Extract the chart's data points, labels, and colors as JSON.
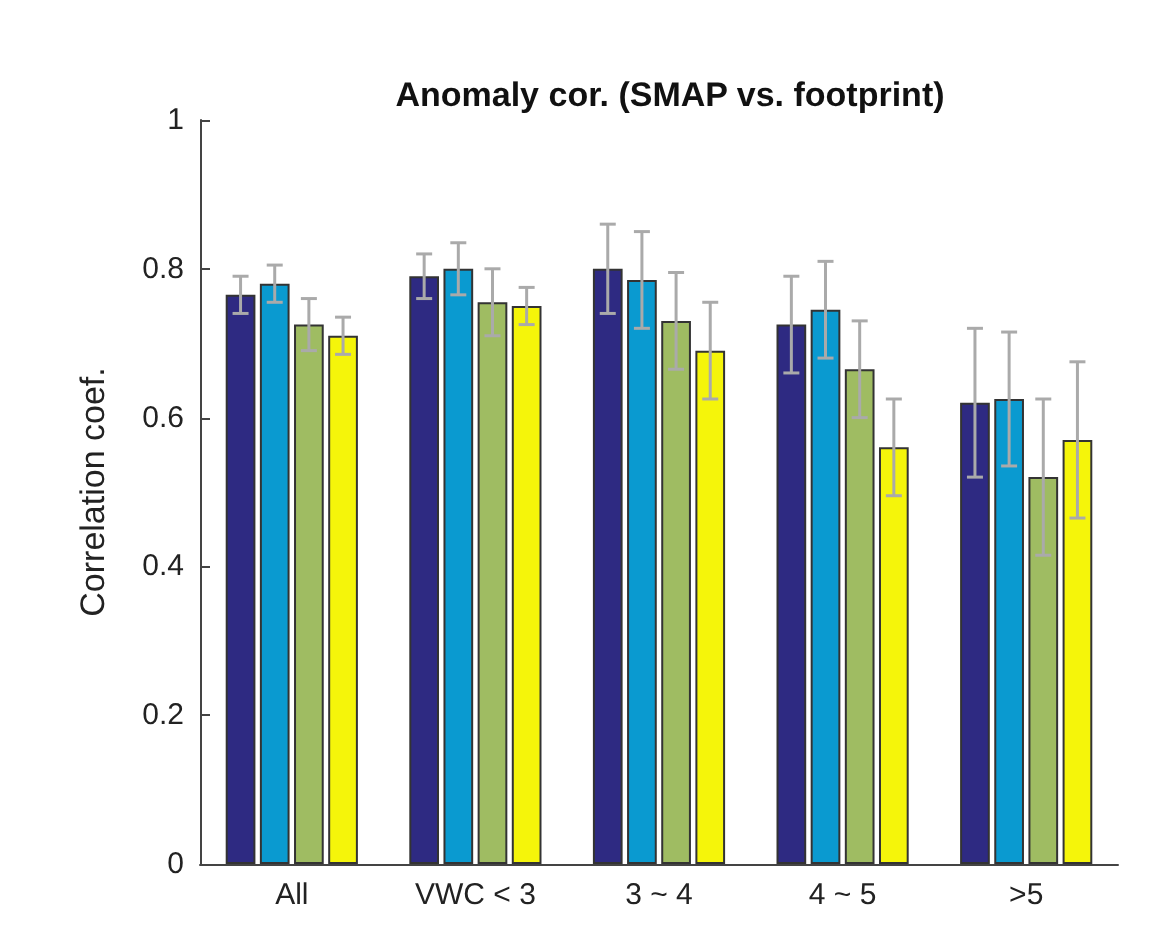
{
  "chart_data": {
    "type": "bar",
    "title": "Anomaly cor. (SMAP vs. footprint)",
    "ylabel": "Correlation coef.",
    "categories": [
      "All",
      "VWC < 3",
      "3 ~ 4",
      "4 ~ 5",
      ">5"
    ],
    "series": [
      {
        "color": "#2e2a82",
        "values": [
          0.765,
          0.79,
          0.8,
          0.725,
          0.62
        ],
        "errors": [
          0.025,
          0.03,
          0.06,
          0.065,
          0.1
        ]
      },
      {
        "color": "#0a9ad0",
        "values": [
          0.78,
          0.8,
          0.785,
          0.745,
          0.625
        ],
        "errors": [
          0.025,
          0.035,
          0.065,
          0.065,
          0.09
        ]
      },
      {
        "color": "#9fbc62",
        "values": [
          0.725,
          0.755,
          0.73,
          0.665,
          0.52
        ],
        "errors": [
          0.035,
          0.045,
          0.065,
          0.065,
          0.105
        ]
      },
      {
        "color": "#f5f50a",
        "values": [
          0.71,
          0.75,
          0.69,
          0.56,
          0.57
        ],
        "errors": [
          0.025,
          0.025,
          0.065,
          0.065,
          0.105
        ]
      }
    ],
    "ylim": [
      0,
      1
    ],
    "yticks": [
      0,
      0.2,
      0.4,
      0.6,
      0.8,
      1
    ],
    "grid": false
  }
}
